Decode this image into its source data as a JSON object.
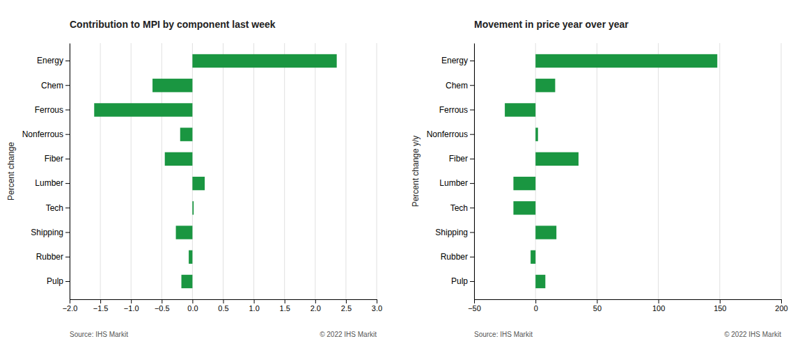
{
  "chart_data": [
    {
      "type": "bar",
      "orientation": "horizontal",
      "title": "Contribution to MPI by component last week",
      "categories": [
        "Energy",
        "Chem",
        "Ferrous",
        "Nonferrous",
        "Fiber",
        "Lumber",
        "Tech",
        "Shipping",
        "Rubber",
        "Pulp"
      ],
      "values": [
        2.35,
        -0.65,
        -1.6,
        -0.2,
        -0.45,
        0.2,
        0.02,
        -0.27,
        -0.06,
        -0.18
      ],
      "color": "#1a9641",
      "xlim": [
        -2.0,
        3.0
      ],
      "xticks": [
        {
          "value": -2.0,
          "label": "−2.0"
        },
        {
          "value": -1.5,
          "label": "−1.5"
        },
        {
          "value": -1.0,
          "label": "−1.0"
        },
        {
          "value": -0.5,
          "label": "−0.5"
        },
        {
          "value": 0.0,
          "label": "0.0"
        },
        {
          "value": 0.5,
          "label": "0.5"
        },
        {
          "value": 1.0,
          "label": "1.0"
        },
        {
          "value": 1.5,
          "label": "1.5"
        },
        {
          "value": 2.0,
          "label": "2.0"
        },
        {
          "value": 2.5,
          "label": "2.5"
        },
        {
          "value": 3.0,
          "label": "3.0"
        }
      ],
      "y_label": "Percent change",
      "grid": true,
      "annotations": [
        "Source:  IHS Markit",
        "© 2022  IHS Markit"
      ]
    },
    {
      "type": "bar",
      "orientation": "horizontal",
      "title": "Movement in price year over year",
      "categories": [
        "Energy",
        "Chem",
        "Ferrous",
        "Nonferrous",
        "Fiber",
        "Lumber",
        "Tech",
        "Shipping",
        "Rubber",
        "Pulp"
      ],
      "values": [
        148,
        16,
        -25,
        2,
        35,
        -18,
        -18,
        17,
        -4,
        8
      ],
      "color": "#1a9641",
      "xlim": [
        -50,
        200
      ],
      "xticks": [
        {
          "value": -50,
          "label": "−50"
        },
        0,
        50,
        100,
        150,
        200
      ],
      "y_label": "Percent change y/y",
      "grid": true,
      "annotations": [
        "Source:  IHS Markit",
        "© 2022  IHS Markit"
      ]
    }
  ]
}
